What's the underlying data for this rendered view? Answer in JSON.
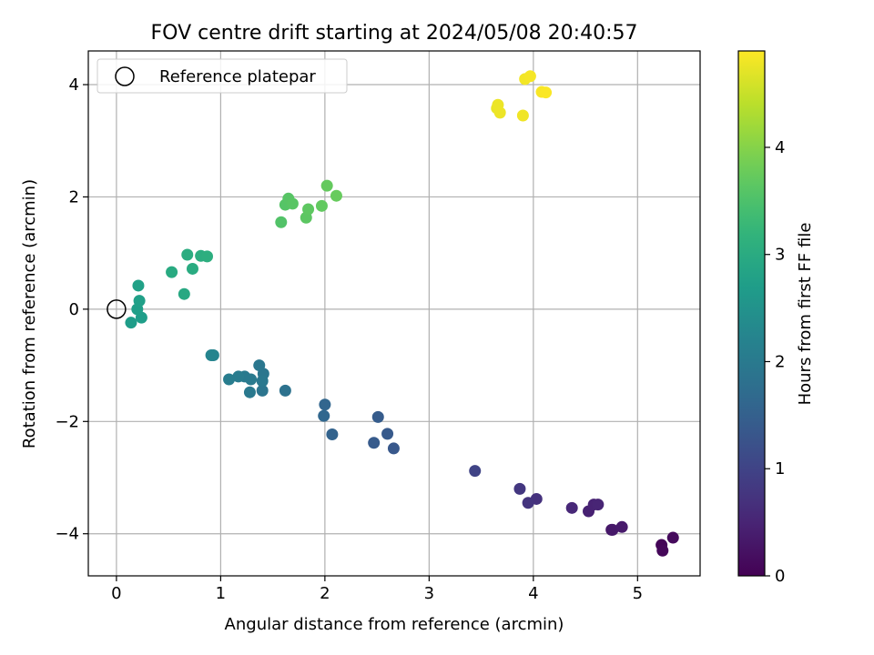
{
  "chart_data": {
    "type": "scatter",
    "title": "FOV centre drift starting at 2024/05/08 20:40:57",
    "xlabel": "Angular distance from reference (arcmin)",
    "ylabel": "Rotation from reference (arcmin)",
    "xlim": [
      -0.27,
      5.6
    ],
    "ylim": [
      -4.75,
      4.6
    ],
    "xticks": [
      0,
      1,
      2,
      3,
      4,
      5
    ],
    "xtick_labels": [
      "0",
      "1",
      "2",
      "3",
      "4",
      "5"
    ],
    "yticks": [
      -4,
      -2,
      0,
      2,
      4
    ],
    "ytick_labels": [
      "−4",
      "−2",
      "0",
      "2",
      "4"
    ],
    "grid": true,
    "legend": {
      "placement": "top-left",
      "entries": [
        "Reference platepar"
      ]
    },
    "reference_point": {
      "x": 0,
      "y": 0,
      "label": "Reference platepar",
      "marker": "open-circle"
    },
    "colorbar": {
      "label": "Hours from first FF file",
      "colormap": "viridis",
      "range": [
        0,
        4.9
      ],
      "ticks": [
        0,
        1,
        2,
        3,
        4
      ],
      "tick_labels": [
        "0",
        "1",
        "2",
        "3",
        "4"
      ]
    },
    "points": [
      {
        "x": 5.23,
        "y": -4.2,
        "c": 0.05
      },
      {
        "x": 5.24,
        "y": -4.3,
        "c": 0.08
      },
      {
        "x": 5.34,
        "y": -4.07,
        "c": 0.12
      },
      {
        "x": 4.75,
        "y": -3.93,
        "c": 0.3
      },
      {
        "x": 4.76,
        "y": -3.93,
        "c": 0.32
      },
      {
        "x": 4.85,
        "y": -3.88,
        "c": 0.35
      },
      {
        "x": 4.53,
        "y": -3.6,
        "c": 0.45
      },
      {
        "x": 4.58,
        "y": -3.48,
        "c": 0.48
      },
      {
        "x": 4.62,
        "y": -3.48,
        "c": 0.5
      },
      {
        "x": 4.37,
        "y": -3.54,
        "c": 0.55
      },
      {
        "x": 4.03,
        "y": -3.38,
        "c": 0.7
      },
      {
        "x": 3.95,
        "y": -3.45,
        "c": 0.75
      },
      {
        "x": 3.87,
        "y": -3.2,
        "c": 0.8
      },
      {
        "x": 3.44,
        "y": -2.88,
        "c": 1.0
      },
      {
        "x": 2.66,
        "y": -2.48,
        "c": 1.35
      },
      {
        "x": 2.6,
        "y": -2.22,
        "c": 1.38
      },
      {
        "x": 2.47,
        "y": -2.38,
        "c": 1.4
      },
      {
        "x": 2.51,
        "y": -1.92,
        "c": 1.42
      },
      {
        "x": 2.07,
        "y": -2.23,
        "c": 1.55
      },
      {
        "x": 2.0,
        "y": -1.7,
        "c": 1.6
      },
      {
        "x": 1.99,
        "y": -1.9,
        "c": 1.62
      },
      {
        "x": 1.62,
        "y": -1.45,
        "c": 1.85
      },
      {
        "x": 1.4,
        "y": -1.45,
        "c": 1.9
      },
      {
        "x": 1.41,
        "y": -1.15,
        "c": 1.92
      },
      {
        "x": 1.37,
        "y": -1.0,
        "c": 1.95
      },
      {
        "x": 1.4,
        "y": -1.28,
        "c": 1.97
      },
      {
        "x": 1.28,
        "y": -1.48,
        "c": 1.98
      },
      {
        "x": 1.29,
        "y": -1.25,
        "c": 2.0
      },
      {
        "x": 1.23,
        "y": -1.2,
        "c": 2.02
      },
      {
        "x": 1.17,
        "y": -1.2,
        "c": 2.05
      },
      {
        "x": 1.08,
        "y": -1.25,
        "c": 2.08
      },
      {
        "x": 0.93,
        "y": -0.82,
        "c": 2.2
      },
      {
        "x": 0.91,
        "y": -0.82,
        "c": 2.22
      },
      {
        "x": 0.14,
        "y": -0.24,
        "c": 2.7
      },
      {
        "x": 0.24,
        "y": -0.15,
        "c": 2.72
      },
      {
        "x": 0.2,
        "y": 0.0,
        "c": 2.74
      },
      {
        "x": 0.22,
        "y": 0.15,
        "c": 2.76
      },
      {
        "x": 0.21,
        "y": 0.42,
        "c": 2.78
      },
      {
        "x": 0.65,
        "y": 0.27,
        "c": 2.95
      },
      {
        "x": 0.53,
        "y": 0.66,
        "c": 2.98
      },
      {
        "x": 0.73,
        "y": 0.72,
        "c": 3.0
      },
      {
        "x": 0.68,
        "y": 0.97,
        "c": 3.02
      },
      {
        "x": 0.81,
        "y": 0.95,
        "c": 3.04
      },
      {
        "x": 0.87,
        "y": 0.94,
        "c": 3.06
      },
      {
        "x": 1.58,
        "y": 1.55,
        "c": 3.55
      },
      {
        "x": 1.62,
        "y": 1.86,
        "c": 3.58
      },
      {
        "x": 1.65,
        "y": 1.97,
        "c": 3.6
      },
      {
        "x": 1.69,
        "y": 1.88,
        "c": 3.62
      },
      {
        "x": 1.82,
        "y": 1.63,
        "c": 3.65
      },
      {
        "x": 1.84,
        "y": 1.78,
        "c": 3.67
      },
      {
        "x": 1.97,
        "y": 1.84,
        "c": 3.7
      },
      {
        "x": 2.02,
        "y": 2.2,
        "c": 3.72
      },
      {
        "x": 2.11,
        "y": 2.02,
        "c": 3.75
      },
      {
        "x": 3.65,
        "y": 3.58,
        "c": 4.75
      },
      {
        "x": 3.66,
        "y": 3.64,
        "c": 4.77
      },
      {
        "x": 3.68,
        "y": 3.5,
        "c": 4.78
      },
      {
        "x": 3.9,
        "y": 3.45,
        "c": 4.8
      },
      {
        "x": 3.92,
        "y": 4.1,
        "c": 4.82
      },
      {
        "x": 3.97,
        "y": 4.15,
        "c": 4.84
      },
      {
        "x": 4.08,
        "y": 3.87,
        "c": 4.86
      },
      {
        "x": 4.12,
        "y": 3.86,
        "c": 4.88
      }
    ]
  }
}
